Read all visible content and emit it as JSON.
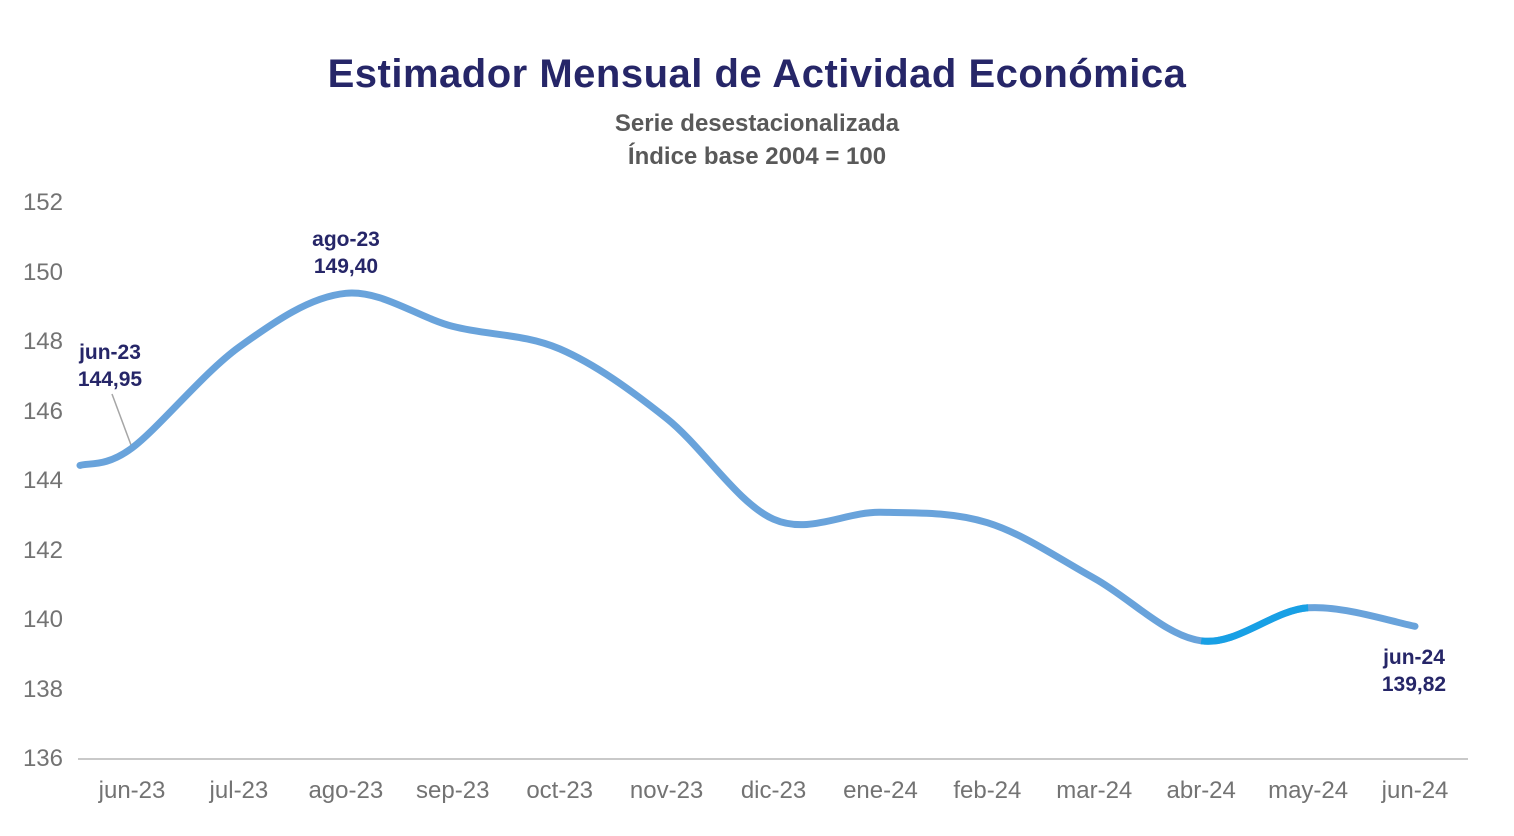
{
  "header": {
    "title": "Estimador Mensual de Actividad Económica",
    "subtitle1": "Serie desestacionalizada",
    "subtitle2": "Índice base 2004 = 100"
  },
  "chart_data": {
    "type": "line",
    "title": "Estimador Mensual de Actividad Económica",
    "subtitle": "Serie desestacionalizada",
    "note": "Índice base 2004 = 100",
    "categories": [
      "jun-23",
      "jul-23",
      "ago-23",
      "sep-23",
      "oct-23",
      "nov-23",
      "dic-23",
      "ene-24",
      "feb-24",
      "mar-24",
      "abr-24",
      "may-24",
      "jun-24"
    ],
    "values": [
      144.95,
      147.85,
      149.4,
      148.45,
      147.8,
      145.8,
      142.9,
      143.1,
      142.8,
      141.2,
      139.4,
      140.35,
      139.82
    ],
    "lead_in_value": 144.45,
    "ylim": [
      136,
      152
    ],
    "yticks": [
      152,
      150,
      148,
      146,
      144,
      142,
      140,
      138,
      136
    ],
    "grid": false,
    "legend": false,
    "line_color": "#69A3DB",
    "highlight_color": "#18A0E5",
    "highlight_from": "abr-24",
    "highlight_to": "may-24",
    "annotation_color": "#262668",
    "annotations": [
      {
        "label": "jun-23",
        "value": "144,95"
      },
      {
        "label": "ago-23",
        "value": "149,40"
      },
      {
        "label": "jun-24",
        "value": "139,82"
      }
    ]
  }
}
